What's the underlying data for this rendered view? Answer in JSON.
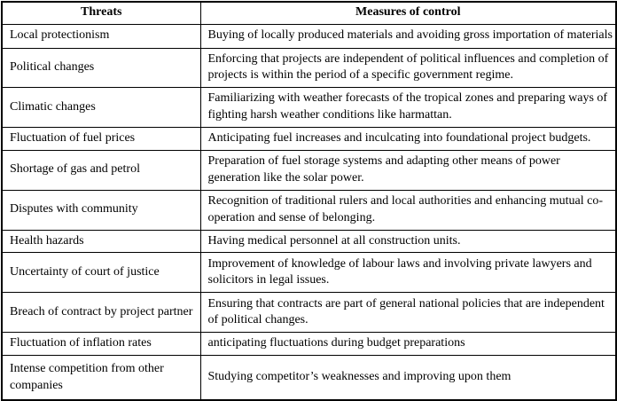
{
  "table": {
    "headers": {
      "threats": "Threats",
      "measures": "Measures of control"
    },
    "rows": [
      {
        "threat": "Local protectionism",
        "measure": "Buying of locally produced materials and avoiding gross importation of materials"
      },
      {
        "threat": "Political changes",
        "measure": "Enforcing that projects are independent of political influences and completion of projects is within the period of a specific government regime."
      },
      {
        "threat": "Climatic changes",
        "measure": "Familiarizing with weather forecasts of the tropical zones and preparing ways of fighting harsh weather conditions like harmattan."
      },
      {
        "threat": "Fluctuation of fuel prices",
        "measure": "Anticipating fuel increases and inculcating into foundational project budgets."
      },
      {
        "threat": "Shortage of gas and petrol",
        "measure": "Preparation of fuel storage systems and adapting other means of power generation like the solar power."
      },
      {
        "threat": "Disputes with community",
        "measure": "Recognition of traditional rulers and local authorities and enhancing mutual co-operation and sense of belonging."
      },
      {
        "threat": "Health hazards",
        "measure": "Having medical personnel at all construction units."
      },
      {
        "threat": "Uncertainty of court of justice",
        "measure": "Improvement of knowledge of labour laws and involving private lawyers and solicitors in legal issues."
      },
      {
        "threat": "Breach of contract by project partner",
        "measure": "Ensuring that contracts are part of general national policies that are independent of political changes."
      },
      {
        "threat": "Fluctuation of inflation rates",
        "measure": "anticipating fluctuations during budget preparations"
      },
      {
        "threat": "Intense competition from other companies",
        "measure": "Studying competitor’s weaknesses and improving upon them"
      }
    ]
  },
  "colors": {
    "border": "#000000",
    "text": "#000000",
    "background": "#ffffff"
  }
}
